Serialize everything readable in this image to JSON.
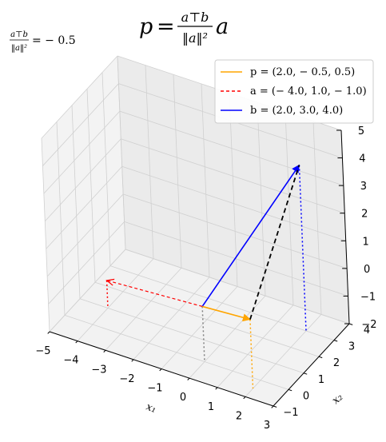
{
  "chart_data": {
    "type": "3d-vector",
    "title": {
      "lhs": "p",
      "eq": "=",
      "num": "a⊤b",
      "den": "‖a‖²",
      "tail": "a"
    },
    "annotation": {
      "num": "a⊤b",
      "den": "‖a‖²",
      "rest": "= − 0.5"
    },
    "xlabel": "x₁",
    "ylabel": "x₂",
    "xlim": [
      -5,
      3
    ],
    "ylim": [
      -1,
      4
    ],
    "zlim": [
      -2,
      5
    ],
    "xticks": [
      -5,
      -4,
      -3,
      -2,
      -1,
      0,
      1,
      2,
      3
    ],
    "yticks": [
      -1,
      0,
      1,
      2,
      3,
      4
    ],
    "zticks": [
      -2,
      -1,
      0,
      1,
      2,
      3,
      4,
      5
    ],
    "xtick_labels": [
      "−5",
      "−4",
      "−3",
      "−2",
      "−1",
      "0",
      "1",
      "2",
      "3"
    ],
    "ytick_labels": [
      "−1",
      "0",
      "1",
      "2",
      "3",
      "4"
    ],
    "ztick_labels": [
      "−2",
      "−1",
      "0",
      "1",
      "2",
      "3",
      "4",
      "5"
    ],
    "grid": true,
    "legend_position": "top-right",
    "vectors": [
      {
        "name": "p",
        "label": "p = (2.0, − 0.5, 0.5)",
        "components": [
          2.0,
          -0.5,
          0.5
        ],
        "color": "#ffa500",
        "style": "solid"
      },
      {
        "name": "a",
        "label": "a = (− 4.0, 1.0, − 1.0)",
        "components": [
          -4.0,
          1.0,
          -1.0
        ],
        "color": "#ff0000",
        "style": "dashed"
      },
      {
        "name": "b",
        "label": "b = (2.0, 3.0, 4.0)",
        "components": [
          2.0,
          3.0,
          4.0
        ],
        "color": "#0000ff",
        "style": "solid"
      }
    ],
    "origin": [
      0,
      0,
      0
    ],
    "error_line": {
      "from": "p",
      "to": "b",
      "color": "#000000",
      "style": "dashed"
    },
    "drop_line_color": "#808080"
  }
}
